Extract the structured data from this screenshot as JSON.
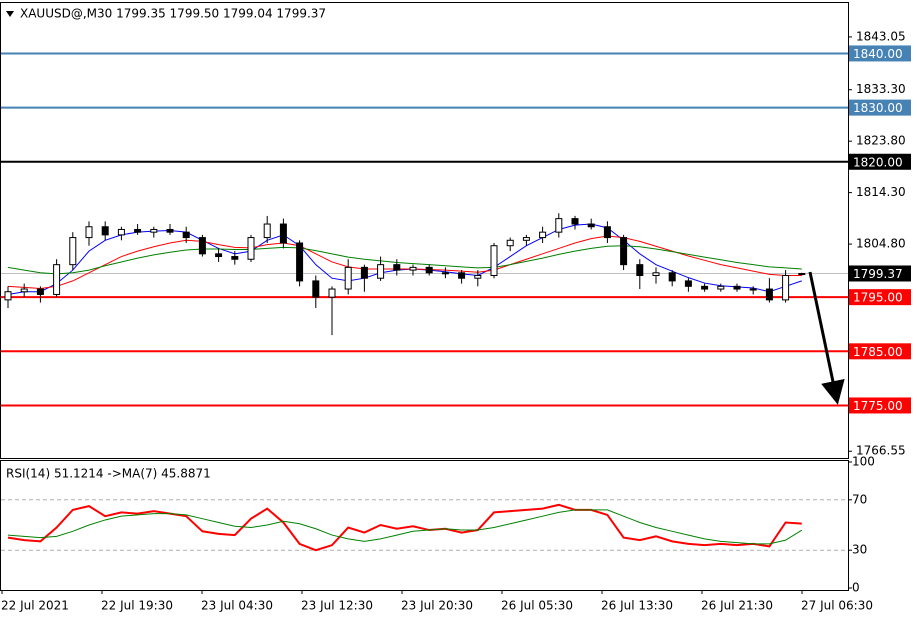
{
  "chart_data": [
    {
      "type": "candlestick",
      "title": "XAUUSD@,M30  1799.35 1799.50 1799.04 1799.37",
      "open": [
        1794.5,
        1796,
        1796.5,
        1795.5,
        1801,
        1806,
        1808,
        1806.5,
        1807.5,
        1807,
        1807.5,
        1807,
        1806,
        1803,
        1802.5,
        1802,
        1806,
        1808.5,
        1805,
        1798,
        1795,
        1796.5,
        1800.5,
        1798.5,
        1801,
        1800,
        1800.5,
        1799.5,
        1799.5,
        1798.5,
        1799,
        1804.5,
        1805.5,
        1806,
        1807,
        1809.5,
        1808.5,
        1808,
        1806,
        1801,
        1799,
        1799.5,
        1798,
        1797,
        1796.5,
        1797,
        1796.5,
        1796.5,
        1794.5,
        1799.35
      ],
      "high": [
        1797,
        1797.5,
        1797,
        1802,
        1807,
        1809,
        1809,
        1808,
        1808.5,
        1808,
        1808.5,
        1808,
        1806.5,
        1804,
        1803.5,
        1806.5,
        1810,
        1809.5,
        1805.5,
        1799,
        1797,
        1802,
        1801,
        1802.5,
        1802,
        1801,
        1801,
        1800.5,
        1800,
        1800,
        1805,
        1806,
        1806.5,
        1808,
        1810.5,
        1810,
        1809.5,
        1809,
        1806.5,
        1802,
        1800.5,
        1800,
        1798.5,
        1797.5,
        1797.5,
        1797.5,
        1797,
        1798.5,
        1800,
        1799.5
      ],
      "low": [
        1793,
        1795,
        1794,
        1795,
        1800,
        1804.5,
        1805.5,
        1805.5,
        1806.5,
        1806,
        1806.5,
        1805,
        1802.5,
        1801.5,
        1801,
        1801.5,
        1805,
        1804,
        1797,
        1793,
        1788,
        1795.5,
        1796,
        1798,
        1799,
        1799,
        1799,
        1798.5,
        1797.5,
        1797,
        1798.5,
        1803.5,
        1804.5,
        1805,
        1806,
        1807.5,
        1807.5,
        1805,
        1800,
        1796.5,
        1797.5,
        1797,
        1796,
        1796,
        1796,
        1796,
        1795.5,
        1794,
        1794,
        1799.04
      ],
      "close": [
        1796,
        1796.5,
        1795.5,
        1801,
        1806,
        1808,
        1806.5,
        1807.5,
        1807,
        1807.5,
        1807,
        1806,
        1803,
        1802.5,
        1802,
        1806,
        1808.5,
        1805,
        1798,
        1795,
        1796.5,
        1800.5,
        1798.5,
        1801,
        1800,
        1800.5,
        1799.5,
        1799.5,
        1798.5,
        1799,
        1804.5,
        1805.5,
        1806,
        1807,
        1809.5,
        1808.5,
        1808,
        1806,
        1801,
        1799,
        1799.5,
        1798,
        1797,
        1796.5,
        1797,
        1796.5,
        1796.5,
        1794.5,
        1799,
        1799.37
      ],
      "up_color": "#ffffff",
      "down_color": "#000000",
      "outline_color": "#000000",
      "lines": [
        {
          "color": "#0000ff",
          "values": [
            1795.5,
            1796,
            1796,
            1797.5,
            1800,
            1803.5,
            1805.5,
            1806.5,
            1807,
            1807.2,
            1807.3,
            1807,
            1805.5,
            1804,
            1803,
            1803.5,
            1805.5,
            1806.5,
            1804.5,
            1801,
            1798.5,
            1798,
            1798.5,
            1799.5,
            1800,
            1800.2,
            1800,
            1799.7,
            1799.3,
            1799,
            1800.5,
            1802.5,
            1804.5,
            1806,
            1807.5,
            1808.3,
            1808.5,
            1807.8,
            1805.5,
            1803,
            1801,
            1799.8,
            1798.6,
            1797.6,
            1797.1,
            1796.9,
            1796.7,
            1796,
            1797,
            1798
          ]
        },
        {
          "color": "#ff0000",
          "values": [
            1797,
            1796.8,
            1796.6,
            1797,
            1798,
            1799.5,
            1801,
            1802.5,
            1803.5,
            1804.3,
            1805,
            1805.5,
            1805.3,
            1804.7,
            1804.2,
            1804.1,
            1804.7,
            1805,
            1804.5,
            1803,
            1801.5,
            1800.6,
            1800.2,
            1800.2,
            1800.2,
            1800.2,
            1800.1,
            1800,
            1799.8,
            1799.6,
            1800,
            1801,
            1802,
            1803,
            1804,
            1805,
            1805.8,
            1806.3,
            1806,
            1805.3,
            1804.4,
            1803.5,
            1802.6,
            1801.8,
            1801,
            1800.4,
            1799.8,
            1799.2,
            1799,
            1799
          ]
        },
        {
          "color": "#008000",
          "values": [
            1800.5,
            1800,
            1799.5,
            1799.3,
            1799.5,
            1800,
            1800.8,
            1801.5,
            1802.2,
            1802.8,
            1803.3,
            1803.7,
            1803.9,
            1803.9,
            1803.8,
            1803.8,
            1804,
            1804.2,
            1804.1,
            1803.6,
            1803,
            1802.4,
            1802,
            1801.7,
            1801.4,
            1801.2,
            1801,
            1800.8,
            1800.6,
            1800.4,
            1800.5,
            1801,
            1801.6,
            1802.2,
            1802.9,
            1803.5,
            1804,
            1804.4,
            1804.5,
            1804.3,
            1803.9,
            1803.4,
            1802.9,
            1802.4,
            1801.9,
            1801.4,
            1801,
            1800.6,
            1800.4,
            1800.2
          ]
        }
      ],
      "levels": [
        {
          "value": 1840,
          "label": "1840.00",
          "color": "#4682b4"
        },
        {
          "value": 1830,
          "label": "1830.00",
          "color": "#4682b4"
        },
        {
          "value": 1820,
          "label": "1820.00",
          "color": "#000000"
        },
        {
          "value": 1795,
          "label": "1795.00",
          "color": "#ff0000"
        },
        {
          "value": 1785,
          "label": "1785.00",
          "color": "#ff0000"
        },
        {
          "value": 1775,
          "label": "1775.00",
          "color": "#ff0000"
        }
      ],
      "last_price": 1799.37,
      "ylim": [
        1765.3,
        1849.5
      ],
      "yticks": [
        1843.05,
        {
          "value": 1833.3,
          "label": "1833.30"
        },
        {
          "value": 1823.8,
          "label": "1823.80"
        },
        {
          "value": 1814.3,
          "label": "1814.30"
        },
        {
          "value": 1804.8,
          "label": "1804.80"
        },
        1766.55
      ]
    },
    {
      "type": "line",
      "title": "RSI(14) 51.1214  ->MA(7) 45.8871",
      "series": [
        {
          "color": "#ff0000",
          "values": [
            40,
            38,
            37,
            48,
            62,
            65,
            57,
            60,
            59,
            61,
            59,
            57,
            45,
            43,
            42,
            55,
            63,
            52,
            35,
            30,
            34,
            48,
            44,
            50,
            47,
            49,
            46,
            47,
            44,
            46,
            60,
            61,
            62,
            63,
            66,
            62,
            62,
            58,
            40,
            38,
            41,
            37,
            35,
            34,
            35,
            34,
            35,
            33,
            52,
            51.1214
          ]
        },
        {
          "color": "#008000",
          "values": [
            42,
            41,
            40,
            41,
            45,
            50,
            54,
            57,
            58,
            59,
            59,
            58,
            55,
            52,
            49,
            48,
            50,
            53,
            51,
            47,
            42,
            39,
            37,
            39,
            42,
            45,
            46,
            47,
            46,
            46,
            48,
            51,
            54,
            57,
            60,
            62,
            62,
            62,
            57,
            52,
            48,
            45,
            42,
            39,
            37,
            36,
            35,
            35,
            38,
            45.8871
          ]
        }
      ],
      "levels": [
        70,
        30
      ],
      "ylim": [
        0,
        100
      ],
      "yticks": [
        100,
        70,
        30,
        0
      ],
      "x_labels": [
        "22 Jul 2021",
        "22 Jul 19:30",
        "23 Jul 04:30",
        "23 Jul 12:30",
        "23 Jul 20:30",
        "26 Jul 05:30",
        "26 Jul 13:30",
        "26 Jul 21:30",
        "27 Jul 06:30"
      ]
    }
  ]
}
